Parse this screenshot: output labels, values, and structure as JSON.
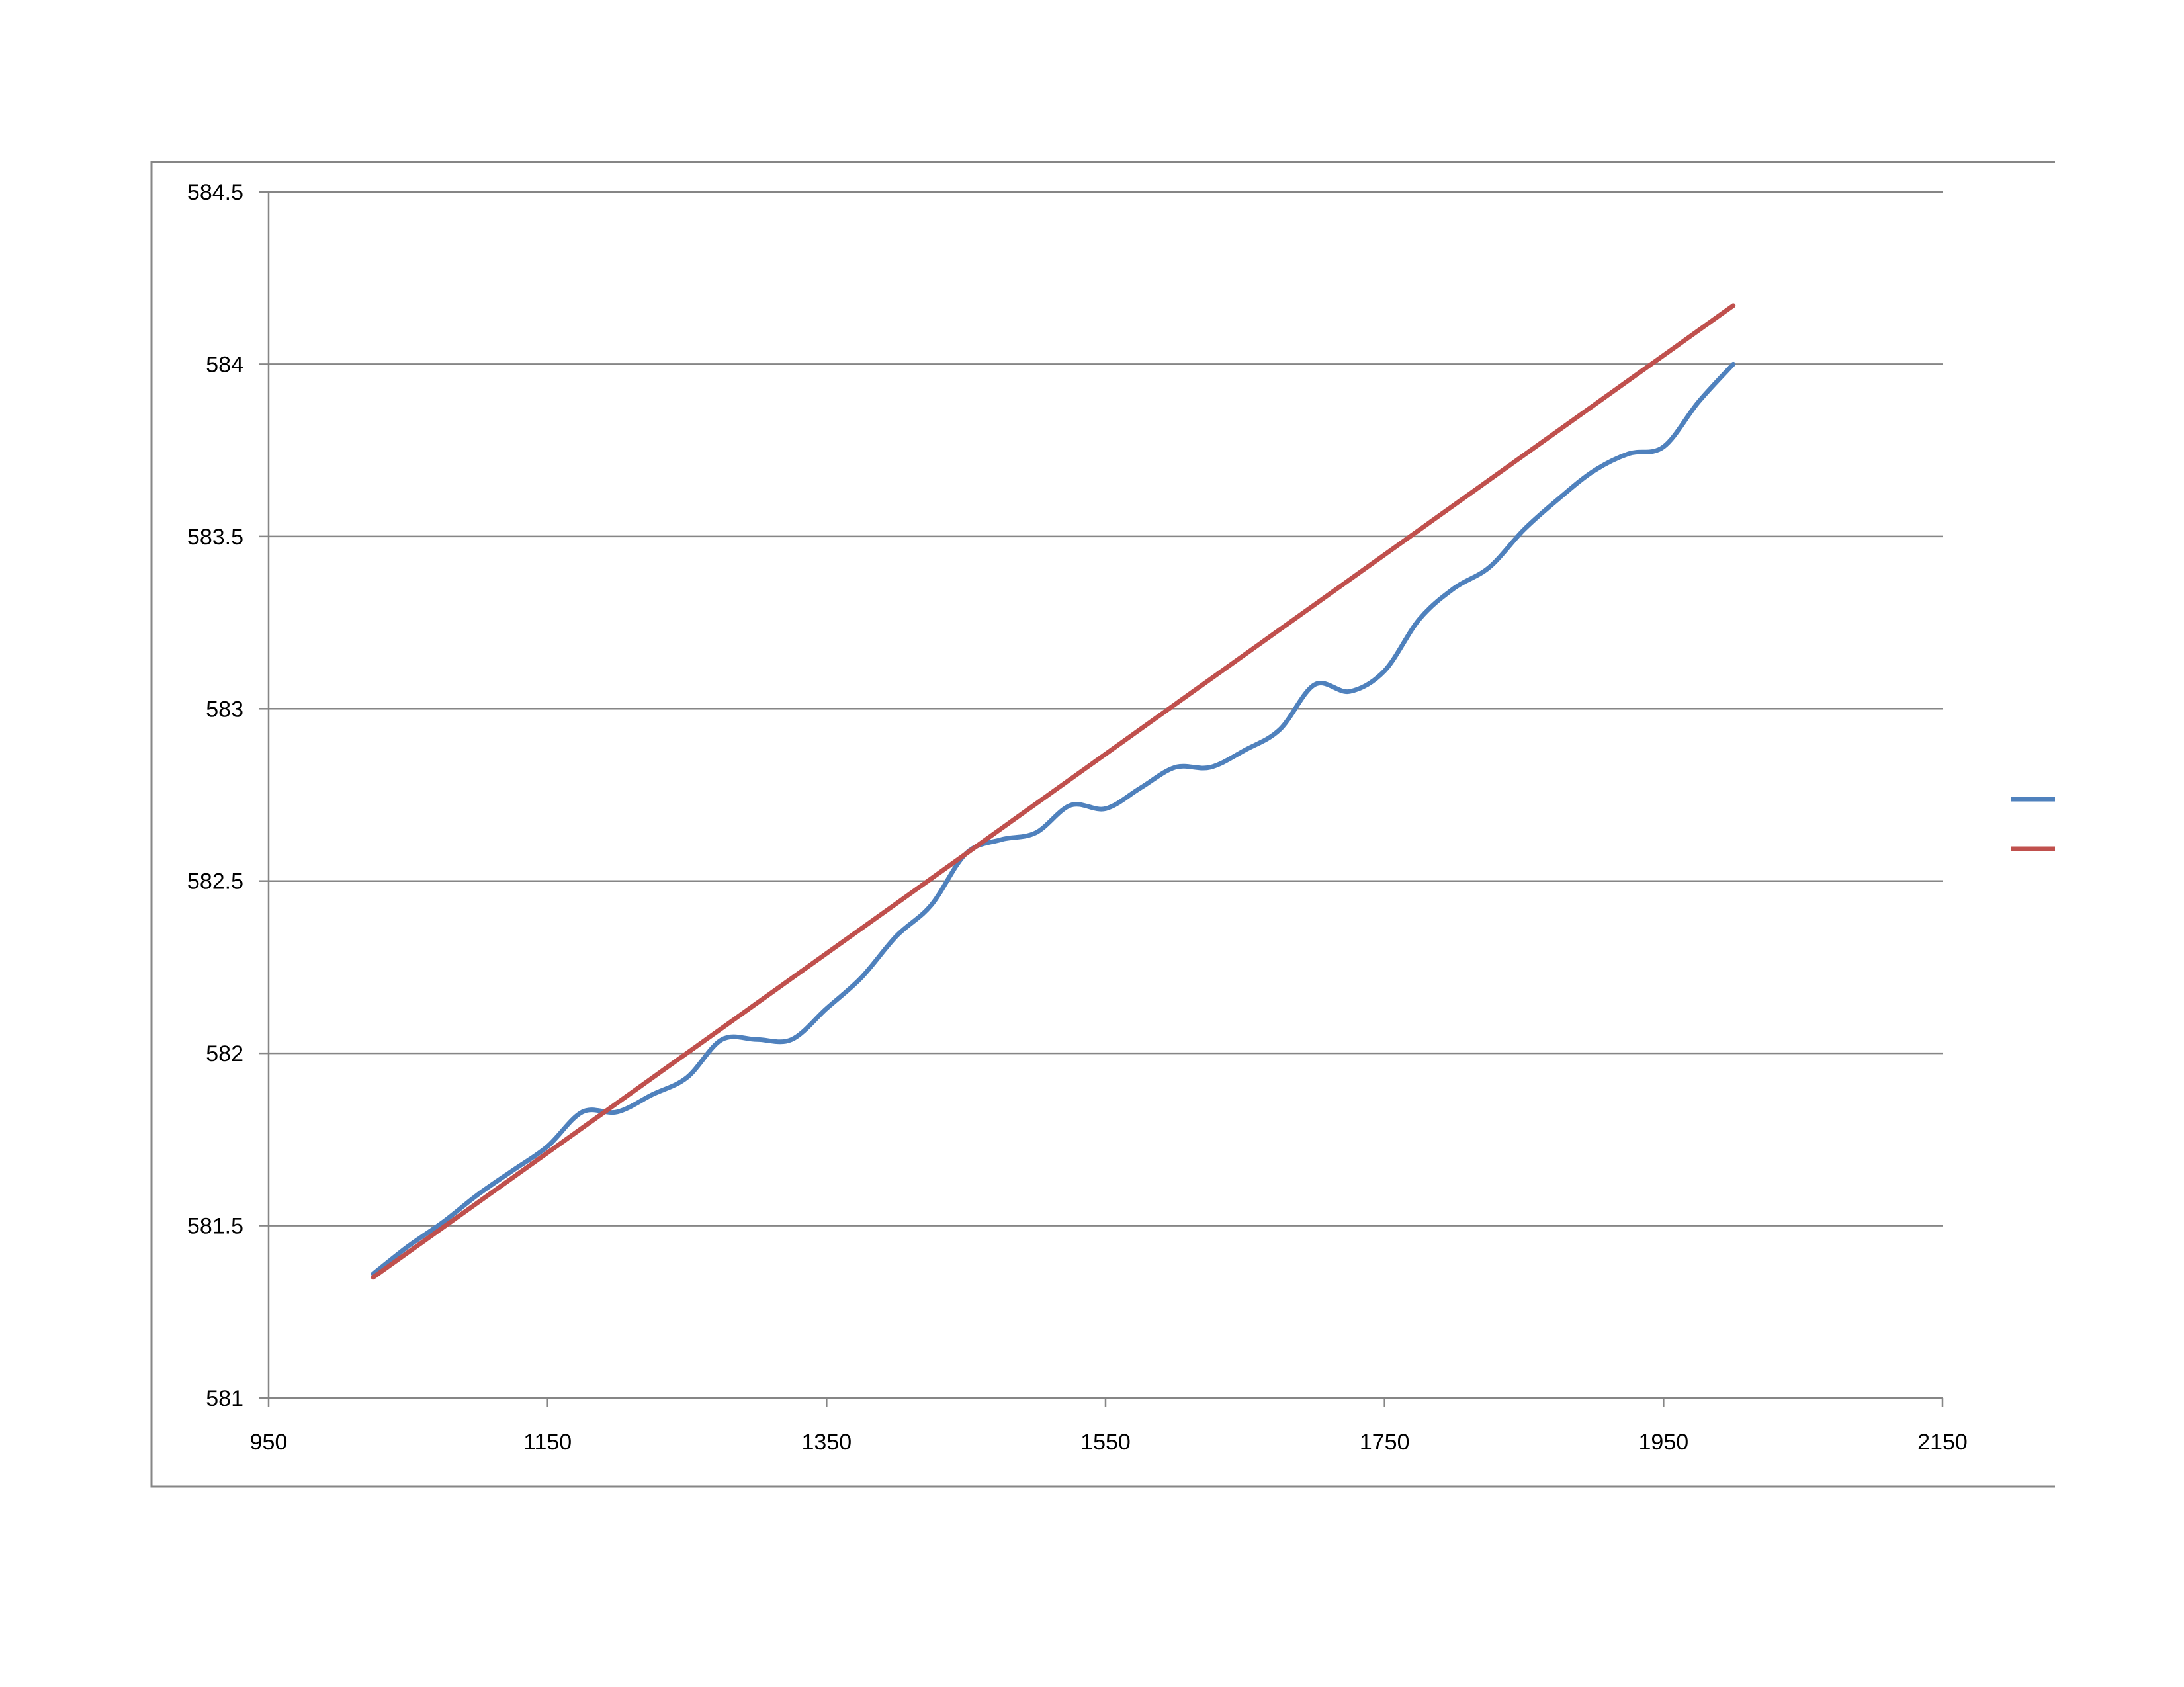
{
  "chart_data": {
    "type": "line",
    "title": "",
    "xlabel": "",
    "ylabel": "",
    "xlim": [
      950,
      2150
    ],
    "ylim": [
      581,
      584.5
    ],
    "x_ticks": [
      950,
      1150,
      1350,
      1550,
      1750,
      1950,
      2150
    ],
    "y_ticks": [
      581,
      581.5,
      582,
      582.5,
      583,
      583.5,
      584,
      584.5
    ],
    "x_tick_labels": [
      "950",
      "1150",
      "1350",
      "1550",
      "1750",
      "1950",
      "2150"
    ],
    "y_tick_labels": [
      "581",
      "581.5",
      "582",
      "582.5",
      "583",
      "583.5",
      "584",
      "584.5"
    ],
    "grid": "horizontal",
    "legend_position": "right",
    "smooth": true,
    "series": [
      {
        "color": "#4F81BD",
        "x": [
          1025,
          1050,
          1075,
          1100,
          1125,
          1150,
          1175,
          1200,
          1225,
          1250,
          1275,
          1300,
          1325,
          1350,
          1375,
          1400,
          1425,
          1450,
          1475,
          1500,
          1525,
          1550,
          1575,
          1600,
          1625,
          1650,
          1675,
          1700,
          1725,
          1750,
          1775,
          1800,
          1825,
          1850,
          1875,
          1900,
          1925,
          1950,
          1975,
          2000
        ],
        "y": [
          581.36,
          581.44,
          581.51,
          581.59,
          581.66,
          581.73,
          581.83,
          581.83,
          581.88,
          581.93,
          582.04,
          582.04,
          582.04,
          582.13,
          582.22,
          582.34,
          582.43,
          582.58,
          582.62,
          582.64,
          582.72,
          582.71,
          582.77,
          582.83,
          582.83,
          582.88,
          582.94,
          583.07,
          583.05,
          583.11,
          583.26,
          583.35,
          583.41,
          583.52,
          583.61,
          583.69,
          583.74,
          583.76,
          583.89,
          584.0
        ]
      },
      {
        "color": "#C0504D",
        "x": [
          1025,
          2000
        ],
        "y": [
          581.35,
          584.17
        ]
      }
    ]
  },
  "colors": {
    "grid": "#868686",
    "frame": "#868686",
    "axis": "#868686",
    "series_blue": "#4F81BD",
    "series_red": "#C0504D"
  }
}
